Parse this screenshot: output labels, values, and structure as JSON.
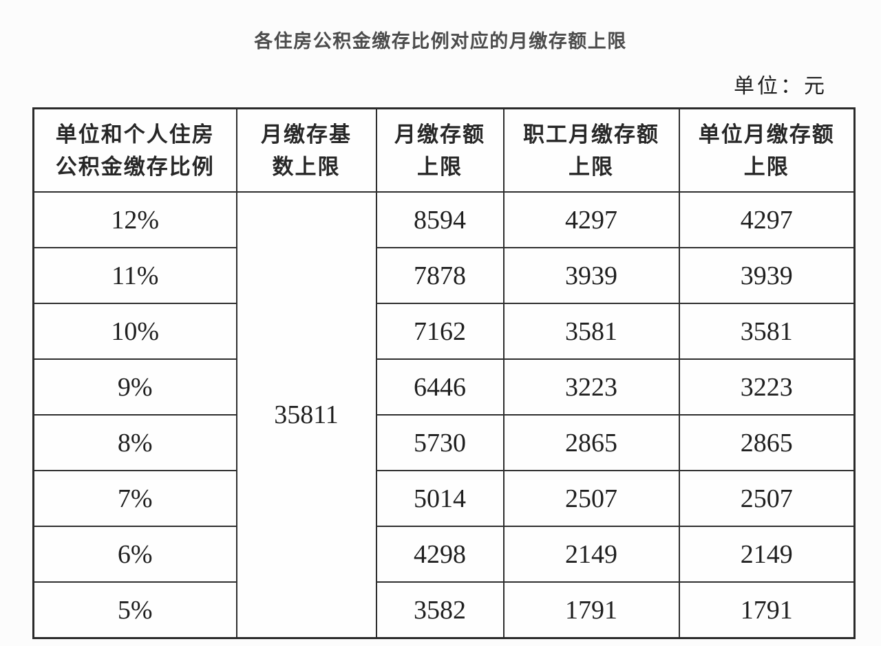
{
  "title": "各住房公积金缴存比例对应的月缴存额上限",
  "unit_label": "单位：元",
  "table": {
    "headers": [
      {
        "line1": "单位和个人住房",
        "line2": "公积金缴存比例"
      },
      {
        "line1": "月缴存基",
        "line2": "数上限"
      },
      {
        "line1": "月缴存额",
        "line2": "上限"
      },
      {
        "line1": "职工月缴存额",
        "line2": "上限"
      },
      {
        "line1": "单位月缴存额",
        "line2": "上限"
      }
    ],
    "monthly_base_cap": "35811",
    "rows": [
      {
        "ratio": "12%",
        "monthly_cap": "8594",
        "employee_monthly_cap": "4297",
        "employer_monthly_cap": "4297"
      },
      {
        "ratio": "11%",
        "monthly_cap": "7878",
        "employee_monthly_cap": "3939",
        "employer_monthly_cap": "3939"
      },
      {
        "ratio": "10%",
        "monthly_cap": "7162",
        "employee_monthly_cap": "3581",
        "employer_monthly_cap": "3581"
      },
      {
        "ratio": "9%",
        "monthly_cap": "6446",
        "employee_monthly_cap": "3223",
        "employer_monthly_cap": "3223"
      },
      {
        "ratio": "8%",
        "monthly_cap": "5730",
        "employee_monthly_cap": "2865",
        "employer_monthly_cap": "2865"
      },
      {
        "ratio": "7%",
        "monthly_cap": "5014",
        "employee_monthly_cap": "2507",
        "employer_monthly_cap": "2507"
      },
      {
        "ratio": "6%",
        "monthly_cap": "4298",
        "employee_monthly_cap": "2149",
        "employer_monthly_cap": "2149"
      },
      {
        "ratio": "5%",
        "monthly_cap": "3582",
        "employee_monthly_cap": "1791",
        "employer_monthly_cap": "1791"
      }
    ]
  },
  "colors": {
    "background": "#fcfcfc",
    "border": "#2e2e2e",
    "title_text": "#4c4c4c",
    "table_text": "#1f1f1f"
  }
}
